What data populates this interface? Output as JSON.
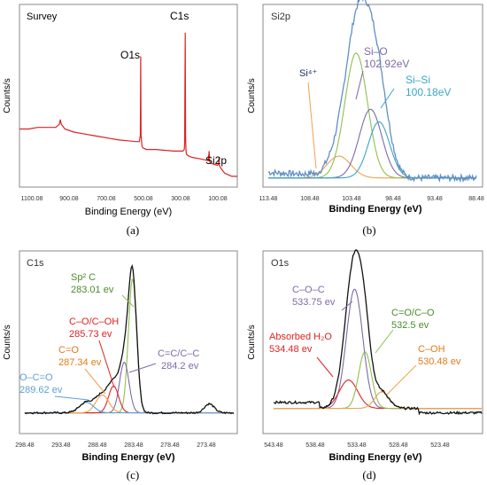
{
  "panels": [
    {
      "id": "a",
      "caption": "(a)",
      "title": "Survey",
      "xlabel": "Binding Energy (eV)",
      "ylabel": "Counts/s",
      "x_ticks": [
        "1100.08",
        "900.08",
        "700.08",
        "500.08",
        "300.08",
        "100.08"
      ],
      "annotations": [
        "O1s",
        "C1s",
        "Si2p"
      ]
    },
    {
      "id": "b",
      "caption": "(b)",
      "title": "Si2p",
      "xlabel": "Binding Energy (eV)",
      "ylabel": "Counts/s",
      "x_ticks": [
        "113.48",
        "108.48",
        "103.48",
        "98.48",
        "93.48",
        "88.48"
      ],
      "annotations": [
        "Si⁴⁺",
        "Si–O",
        "102.92eV",
        "Si–Si",
        "100.18eV"
      ]
    },
    {
      "id": "c",
      "caption": "(c)",
      "title": "C1s",
      "xlabel": "Binding Energy (eV)",
      "ylabel": "Counts/s",
      "x_ticks": [
        "298.48",
        "293.48",
        "288.48",
        "283.48",
        "278.48",
        "273.48"
      ],
      "annotations": [
        "Sp² C",
        "283.01 ev",
        "C–O/C–OH",
        "285.73 ev",
        "C=O",
        "287.34 ev",
        "O–C=O",
        "289.62 ev",
        "C=C/C–C",
        "284.2 ev"
      ]
    },
    {
      "id": "d",
      "caption": "(d)",
      "title": "O1s",
      "xlabel": "Binding Energy (eV)",
      "ylabel": "Counts/s",
      "x_ticks": [
        "543.48",
        "538.48",
        "533.48",
        "528.48",
        "523.48"
      ],
      "annotations": [
        "C–O–C",
        "533.75 ev",
        "Absorbed H₂O",
        "534.48 ev",
        "C=O/C–O",
        "532.5 ev",
        "C–OH",
        "530.48 ev"
      ]
    }
  ],
  "chart_data": [
    {
      "type": "line",
      "title": "Survey",
      "xlabel": "Binding Energy (eV)",
      "ylabel": "Counts/s",
      "x_reversed": true,
      "xlim": [
        1200,
        0
      ],
      "ylim": [
        0,
        100
      ],
      "color": "#dd2222",
      "series": [
        {
          "x": [
            1200,
            1150,
            1100,
            1050,
            1000,
            980,
            975,
            970,
            950,
            900,
            850,
            800,
            750,
            700,
            650,
            600,
            560,
            540,
            534,
            532,
            530,
            525,
            520,
            500,
            450,
            400,
            350,
            300,
            292,
            290,
            287,
            285,
            283,
            280,
            270,
            250,
            200,
            160,
            155,
            153,
            151,
            140,
            110,
            103,
            101,
            99,
            90,
            70,
            50,
            30,
            10,
            0
          ],
          "y": [
            34,
            34,
            35,
            35,
            35,
            37,
            40,
            37,
            34,
            32,
            31,
            30,
            29,
            28,
            27,
            26.5,
            26,
            26,
            30,
            80,
            30,
            23,
            22,
            21,
            21,
            20.5,
            20,
            20,
            21,
            24,
            95,
            30,
            21,
            18,
            17,
            16,
            15,
            14,
            20,
            14,
            13,
            12,
            11,
            12,
            16,
            11,
            9,
            6,
            5,
            4,
            4,
            4
          ]
        }
      ]
    },
    {
      "type": "line",
      "title": "Si2p",
      "xlabel": "Binding Energy (eV)",
      "ylabel": "Counts/s",
      "x_reversed": true,
      "xlim": [
        113.48,
        88.48
      ],
      "ylim": [
        0,
        100
      ],
      "raw_color": "#5f8fc4",
      "components": [
        {
          "name": "Si⁴⁺",
          "center": 105.0,
          "fwhm": 3.4,
          "height": 14,
          "color": "#f0a04b"
        },
        {
          "name": "Si–O",
          "center": 102.92,
          "fwhm": 3.2,
          "height": 80,
          "color": "#8fbf4f"
        },
        {
          "name": "Si–O",
          "center": 101.2,
          "fwhm": 3.2,
          "height": 44,
          "color": "#7e6aa8"
        },
        {
          "name": "Si–Si",
          "center": 100.18,
          "fwhm": 3.0,
          "height": 36,
          "color": "#3ba6c5"
        }
      ],
      "baseline": 3
    },
    {
      "type": "line",
      "title": "C1s",
      "xlabel": "Binding Energy (eV)",
      "ylabel": "Counts/s",
      "x_reversed": true,
      "xlim": [
        298.48,
        268.48
      ],
      "ylim": [
        0,
        100
      ],
      "raw_color": "#111111",
      "components": [
        {
          "name": "Sp² C",
          "center": 283.01,
          "fwhm": 1.4,
          "height": 90,
          "color": "#8fbf4f"
        },
        {
          "name": "C=C/C–C",
          "center": 284.2,
          "fwhm": 1.6,
          "height": 34,
          "color": "#7e6aa8"
        },
        {
          "name": "C–O/C–OH",
          "center": 285.73,
          "fwhm": 1.7,
          "height": 18,
          "color": "#dd2222"
        },
        {
          "name": "C=O",
          "center": 287.34,
          "fwhm": 2.2,
          "height": 12,
          "color": "#f0a04b"
        },
        {
          "name": "O–C=O",
          "center": 289.62,
          "fwhm": 2.4,
          "height": 7,
          "color": "#5f9fd4"
        }
      ],
      "baseline": 5
    },
    {
      "type": "line",
      "title": "O1s",
      "xlabel": "Binding Energy (eV)",
      "ylabel": "Counts/s",
      "x_reversed": true,
      "xlim": [
        543.48,
        518.48
      ],
      "ylim": [
        0,
        100
      ],
      "raw_color": "#111111",
      "components": [
        {
          "name": "C–O–C",
          "center": 533.75,
          "fwhm": 2.3,
          "height": 80,
          "color": "#7e6aa8"
        },
        {
          "name": "Absorbed H₂O",
          "center": 534.48,
          "fwhm": 2.6,
          "height": 19,
          "color": "#dd2222"
        },
        {
          "name": "C=O/C–O",
          "center": 532.5,
          "fwhm": 1.8,
          "height": 38,
          "color": "#8fbf4f"
        },
        {
          "name": "C–OH",
          "center": 530.48,
          "fwhm": 2.0,
          "height": 11,
          "color": "#f0a04b"
        }
      ],
      "baseline": 8
    }
  ]
}
